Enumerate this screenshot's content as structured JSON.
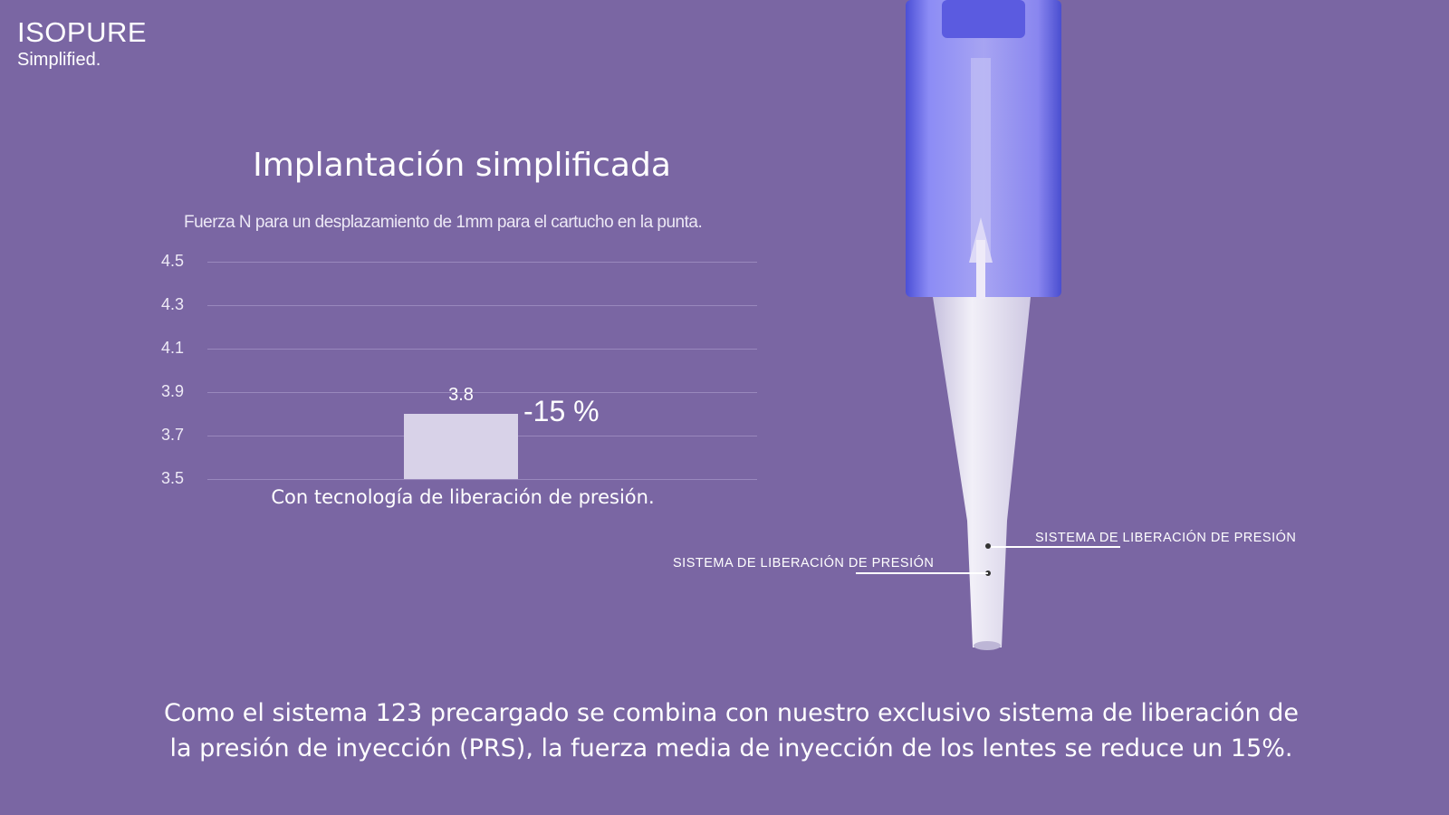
{
  "brand": {
    "name": "ISOPURE",
    "tagline": "Simplified."
  },
  "title": "Implantación simplificada",
  "chart_data": {
    "type": "bar",
    "title": "Implantación simplificada",
    "subtitle": "Fuerza N para un desplazamiento de 1mm para el cartucho en la punta.",
    "categories": [
      "Con tecnología de liberación de presión."
    ],
    "values": [
      3.8
    ],
    "data_labels": [
      "3.8"
    ],
    "annotation": "-15 %",
    "yticks": [
      "4.5",
      "4.3",
      "4.1",
      "3.9",
      "3.7",
      "3.5"
    ],
    "ylim": [
      3.5,
      4.5
    ],
    "grid": true,
    "bar_color": "#d8d2e8"
  },
  "device": {
    "labels": [
      "SISTEMA DE LIBERACIÓN DE PRESIÓN",
      "SISTEMA DE LIBERACIÓN DE PRESIÓN"
    ]
  },
  "caption": {
    "line1": "Como el sistema 123 precargado se combina con nuestro exclusivo sistema de liberación de",
    "line2": "la presión de inyección (PRS), la fuerza media de inyección de los lentes se reduce un 15%."
  },
  "colors": {
    "background": "#7a66a3",
    "device_blue": "#6a6ae8"
  }
}
